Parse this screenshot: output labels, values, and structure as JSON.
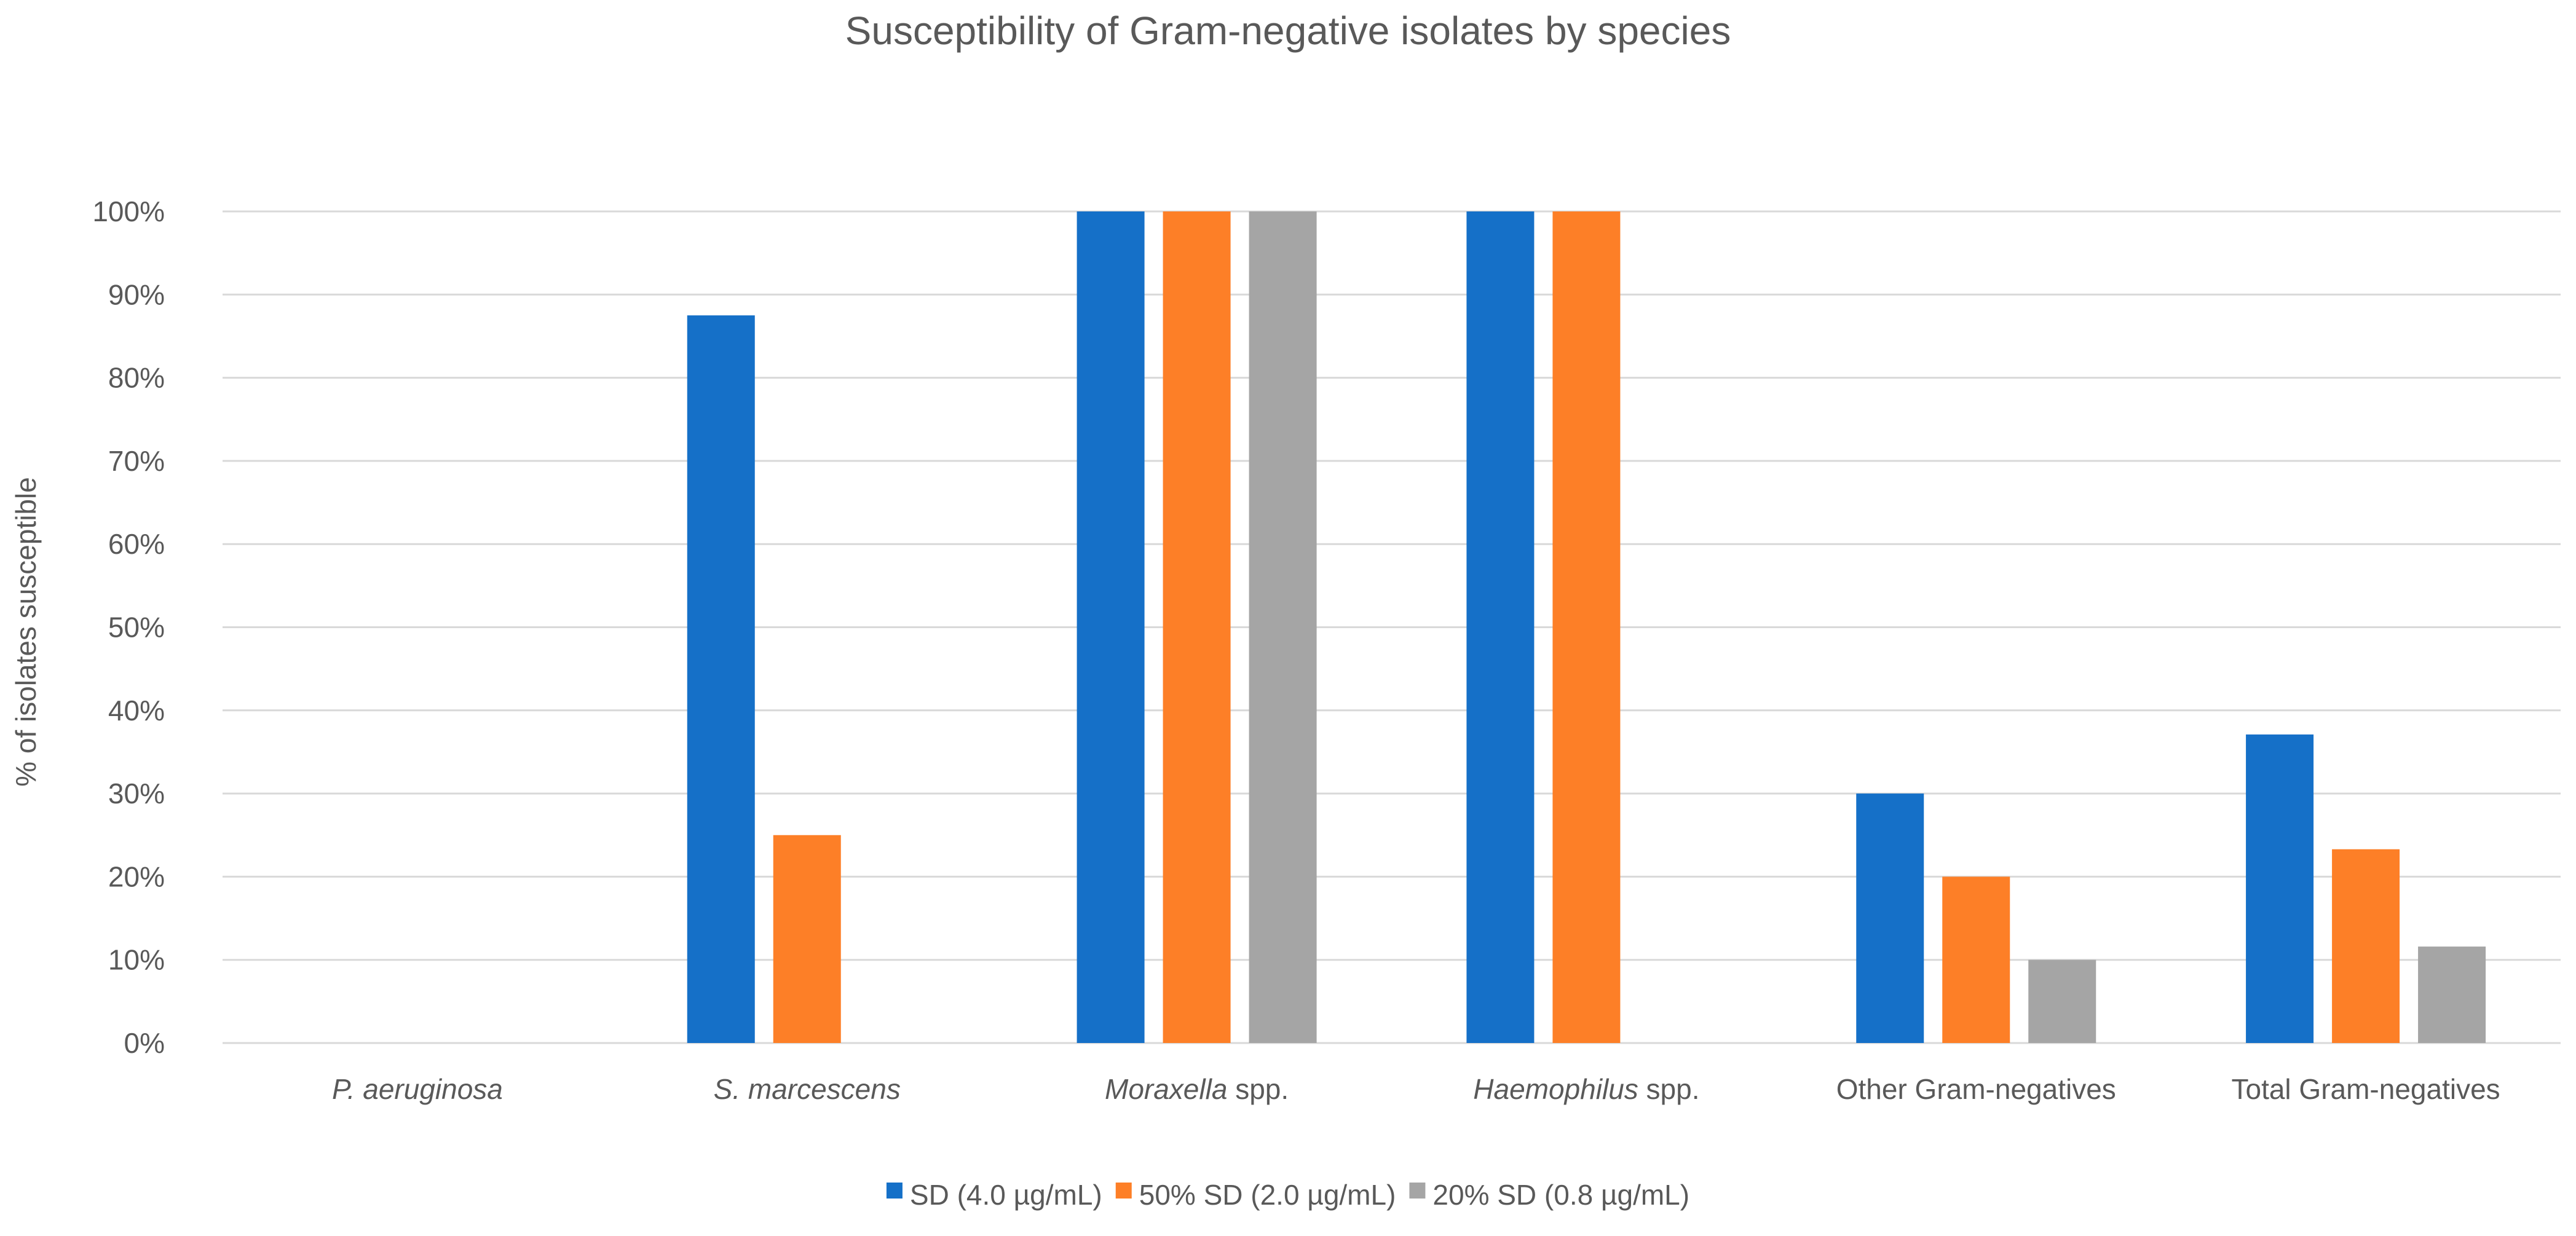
{
  "chart_data": {
    "type": "bar",
    "title": "Susceptibility of Gram-negative isolates by species",
    "xlabel": "",
    "ylabel": "% of isolates susceptible",
    "ylim": [
      0,
      100
    ],
    "ytick_step": 10,
    "ytick_suffix": "%",
    "grid": true,
    "legend_position": "bottom",
    "categories": [
      {
        "parts": [
          {
            "text": "P. aeruginosa",
            "italic": true
          }
        ]
      },
      {
        "parts": [
          {
            "text": "S. marcescens",
            "italic": true
          }
        ]
      },
      {
        "parts": [
          {
            "text": "Moraxella",
            "italic": true
          },
          {
            "text": " spp.",
            "italic": false
          }
        ]
      },
      {
        "parts": [
          {
            "text": "Haemophilus",
            "italic": true
          },
          {
            "text": " spp.",
            "italic": false
          }
        ]
      },
      {
        "parts": [
          {
            "text": "Other Gram-negatives",
            "italic": false
          }
        ]
      },
      {
        "parts": [
          {
            "text": "Total Gram-negatives",
            "italic": false
          }
        ]
      }
    ],
    "series": [
      {
        "name": "SD (4.0 µg/mL)",
        "color": "#1570c8",
        "values": [
          0,
          87.5,
          100,
          100,
          30,
          37.1
        ]
      },
      {
        "name": "50% SD (2.0 µg/mL)",
        "color": "#fd7f27",
        "values": [
          0,
          25,
          100,
          100,
          20,
          23.3
        ]
      },
      {
        "name": "20% SD (0.8 µg/mL)",
        "color": "#a5a5a5",
        "values": [
          0,
          0,
          100,
          0,
          10,
          11.6
        ]
      }
    ]
  }
}
